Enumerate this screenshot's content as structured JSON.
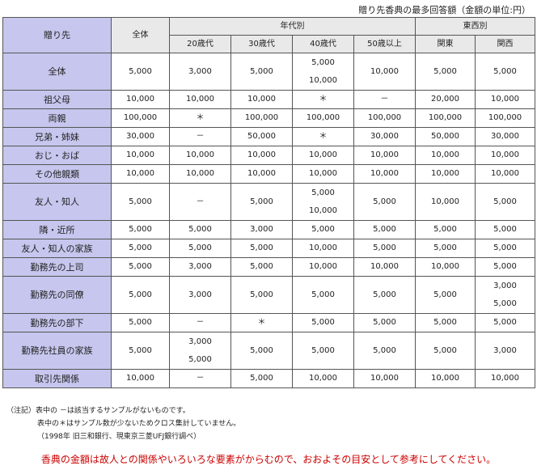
{
  "caption": "贈り先香典の最多回答額（金額の単位:円）",
  "table": {
    "corner_label": "贈り先",
    "total_label": "全体",
    "age_group_label": "年代別",
    "region_group_label": "東西別",
    "subheaders": [
      "20歳代",
      "30歳代",
      "40歳代",
      "50歳以上",
      "関東",
      "関西"
    ],
    "rows": [
      {
        "label": "全体",
        "cells": [
          [
            "5,000"
          ],
          [
            "3,000"
          ],
          [
            "5,000"
          ],
          [
            "5,000",
            "10,000"
          ],
          [
            "10,000"
          ],
          [
            "5,000"
          ],
          [
            "5,000"
          ]
        ]
      },
      {
        "label": "祖父母",
        "cells": [
          [
            "10,000"
          ],
          [
            "10,000"
          ],
          [
            "10,000"
          ],
          [
            "＊"
          ],
          [
            "－"
          ],
          [
            "20,000"
          ],
          [
            "10,000"
          ]
        ]
      },
      {
        "label": "両親",
        "cells": [
          [
            "100,000"
          ],
          [
            "＊"
          ],
          [
            "100,000"
          ],
          [
            "100,000"
          ],
          [
            "100,000"
          ],
          [
            "100,000"
          ],
          [
            "100,000"
          ]
        ]
      },
      {
        "label": "兄弟・姉妹",
        "cells": [
          [
            "30,000"
          ],
          [
            "－"
          ],
          [
            "50,000"
          ],
          [
            "＊"
          ],
          [
            "30,000"
          ],
          [
            "50,000"
          ],
          [
            "30,000"
          ]
        ]
      },
      {
        "label": "おじ・おば",
        "cells": [
          [
            "10,000"
          ],
          [
            "10,000"
          ],
          [
            "10,000"
          ],
          [
            "10,000"
          ],
          [
            "10,000"
          ],
          [
            "10,000"
          ],
          [
            "10,000"
          ]
        ]
      },
      {
        "label": "その他親類",
        "cells": [
          [
            "10,000"
          ],
          [
            "10,000"
          ],
          [
            "10,000"
          ],
          [
            "10,000"
          ],
          [
            "10,000"
          ],
          [
            "10,000"
          ],
          [
            "10,000"
          ]
        ]
      },
      {
        "label": "友人・知人",
        "cells": [
          [
            "5,000"
          ],
          [
            "－"
          ],
          [
            "5,000"
          ],
          [
            "5,000",
            "10,000"
          ],
          [
            "5,000"
          ],
          [
            "10,000"
          ],
          [
            "5,000"
          ]
        ]
      },
      {
        "label": "隣・近所",
        "cells": [
          [
            "5,000"
          ],
          [
            "5,000"
          ],
          [
            "3,000"
          ],
          [
            "5,000"
          ],
          [
            "5,000"
          ],
          [
            "5,000"
          ],
          [
            "5,000"
          ]
        ]
      },
      {
        "label": "友人・知人の家族",
        "cells": [
          [
            "5,000"
          ],
          [
            "5,000"
          ],
          [
            "5,000"
          ],
          [
            "10,000"
          ],
          [
            "5,000"
          ],
          [
            "5,000"
          ],
          [
            "5,000"
          ]
        ]
      },
      {
        "label": "勤務先の上司",
        "cells": [
          [
            "5,000"
          ],
          [
            "3,000"
          ],
          [
            "5,000"
          ],
          [
            "10,000"
          ],
          [
            "10,000"
          ],
          [
            "10,000"
          ],
          [
            "5,000"
          ]
        ]
      },
      {
        "label": "勤務先の同僚",
        "cells": [
          [
            "5,000"
          ],
          [
            "3,000"
          ],
          [
            "5,000"
          ],
          [
            "5,000"
          ],
          [
            "5,000"
          ],
          [
            "5,000"
          ],
          [
            "3,000",
            "5,000"
          ]
        ]
      },
      {
        "label": "勤務先の部下",
        "cells": [
          [
            "5,000"
          ],
          [
            "－"
          ],
          [
            "＊"
          ],
          [
            "5,000"
          ],
          [
            "5,000"
          ],
          [
            "5,000"
          ],
          [
            "5,000"
          ]
        ]
      },
      {
        "label": "勤務先社員の家族",
        "cells": [
          [
            "5,000"
          ],
          [
            "3,000",
            "5,000"
          ],
          [
            "5,000"
          ],
          [
            "5,000"
          ],
          [
            "5,000"
          ],
          [
            "5,000"
          ],
          [
            "3,000"
          ]
        ]
      },
      {
        "label": "取引先関係",
        "cells": [
          [
            "10,000"
          ],
          [
            "－"
          ],
          [
            "5,000"
          ],
          [
            "10,000"
          ],
          [
            "10,000"
          ],
          [
            "10,000"
          ],
          [
            "10,000"
          ]
        ]
      }
    ]
  },
  "notes": {
    "line1": "（注記）表中の －は該当するサンプルがないものです。",
    "line2": "表中の＊はサンプル数が少ないためクロス集計していません。",
    "line3": "（1998年 旧三和銀行、現東京三菱UFJ銀行調べ）"
  },
  "footer": "香典の金額は故人との関係やいろいろな要素がからむので、おおよその目安として参考にしてください。"
}
